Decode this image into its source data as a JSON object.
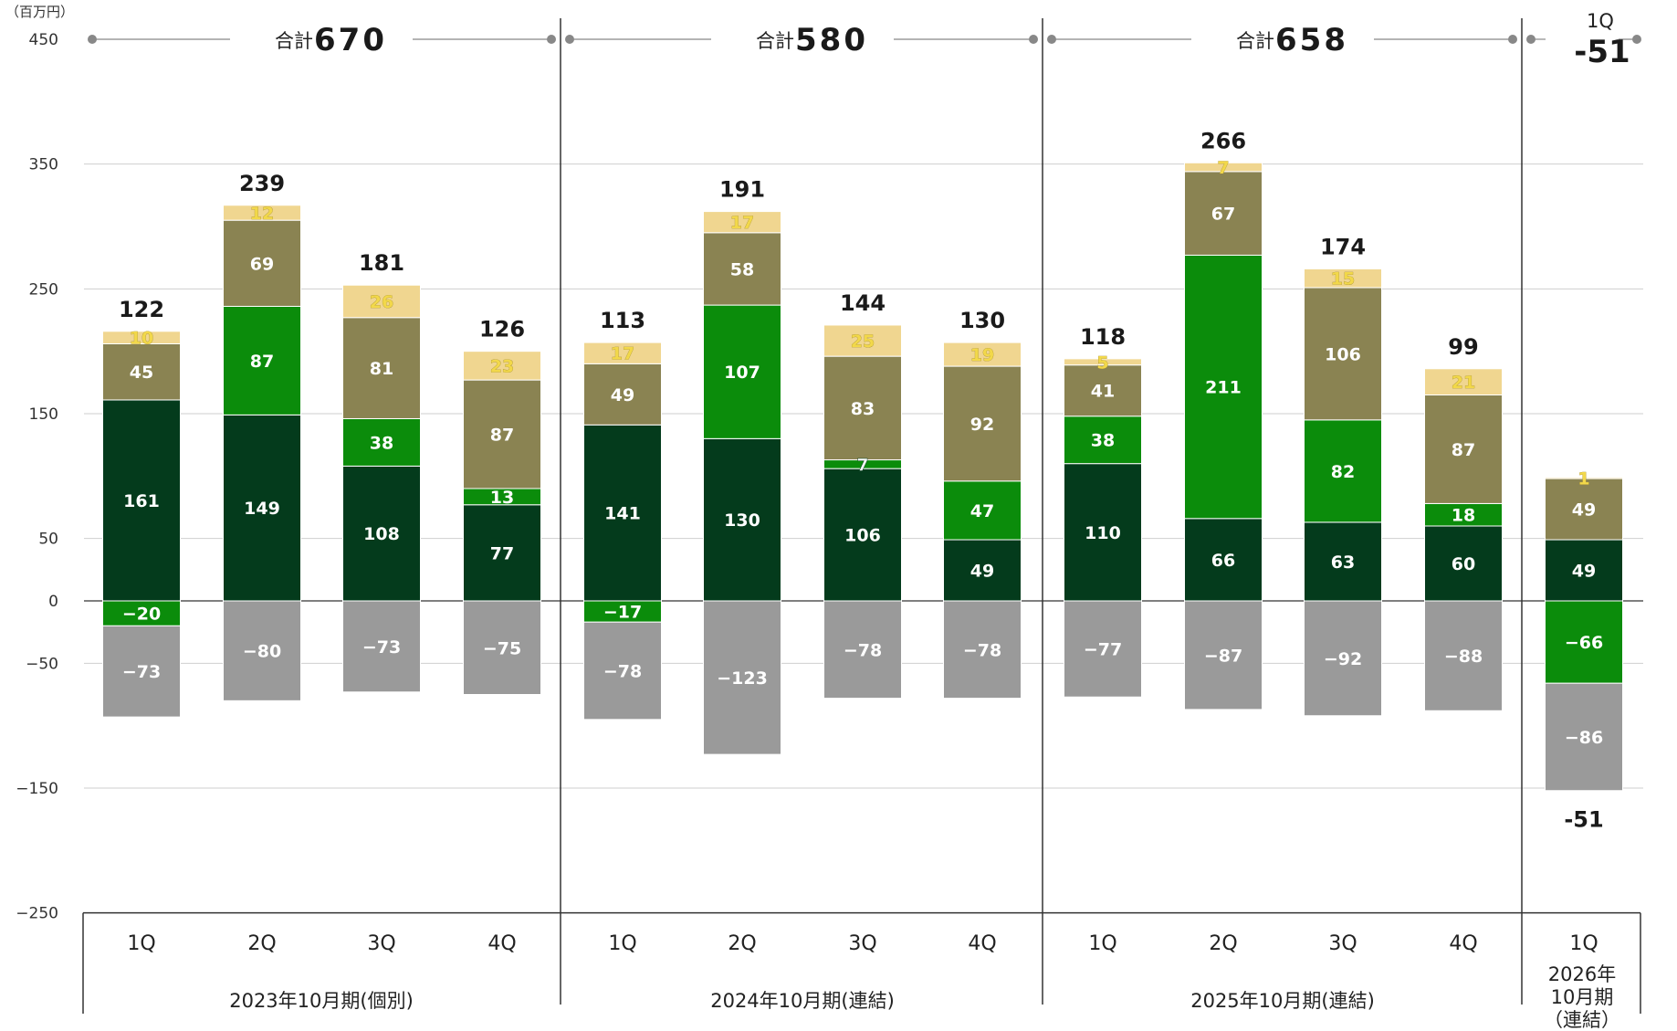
{
  "chart_data": {
    "type": "bar",
    "stacked": true,
    "unit_label": "（百万円）",
    "ylim": [
      -250,
      450
    ],
    "yticks": [
      450,
      350,
      250,
      150,
      50,
      0,
      -50,
      -150,
      -250
    ],
    "grid": true,
    "colors": {
      "dark_green": "#043b1c",
      "green": "#0b8c0b",
      "olive": "#8a8352",
      "tan": "#f0d690",
      "gray": "#9a9a9a",
      "tan_label": "#f2d84a"
    },
    "periods": [
      {
        "label": "2023年10月期(個別)",
        "sum_label": "合計",
        "sum_value": "670"
      },
      {
        "label": "2024年10月期(連結)",
        "sum_label": "合計",
        "sum_value": "580"
      },
      {
        "label": "2025年10月期(連結)",
        "sum_label": "合計",
        "sum_value": "658"
      },
      {
        "label_lines": [
          "2026年",
          "10月期",
          "（連結）"
        ],
        "sum_label": "1Q",
        "sum_value": "-51"
      }
    ],
    "bars": [
      {
        "quarter": "1Q",
        "period": 0,
        "total": "122",
        "dark_green": 161,
        "green": -20,
        "olive": 45,
        "tan": 10,
        "gray": -73
      },
      {
        "quarter": "2Q",
        "period": 0,
        "total": "239",
        "dark_green": 149,
        "green": 87,
        "olive": 69,
        "tan": 12,
        "gray": -80
      },
      {
        "quarter": "3Q",
        "period": 0,
        "total": "181",
        "dark_green": 108,
        "green": 38,
        "olive": 81,
        "tan": 26,
        "gray": -73
      },
      {
        "quarter": "4Q",
        "period": 0,
        "total": "126",
        "dark_green": 77,
        "green": 13,
        "olive": 87,
        "tan": 23,
        "gray": -75
      },
      {
        "quarter": "1Q",
        "period": 1,
        "total": "113",
        "dark_green": 141,
        "green": -17,
        "olive": 49,
        "tan": 17,
        "gray": -78
      },
      {
        "quarter": "2Q",
        "period": 1,
        "total": "191",
        "dark_green": 130,
        "green": 107,
        "olive": 58,
        "tan": 17,
        "gray": -123
      },
      {
        "quarter": "3Q",
        "period": 1,
        "total": "144",
        "dark_green": 106,
        "green": 7,
        "olive": 83,
        "tan": 25,
        "gray": -78
      },
      {
        "quarter": "4Q",
        "period": 1,
        "total": "130",
        "dark_green": 49,
        "green": 47,
        "olive": 92,
        "tan": 19,
        "gray": -78
      },
      {
        "quarter": "1Q",
        "period": 2,
        "total": "118",
        "dark_green": 110,
        "green": 38,
        "olive": 41,
        "tan": 5,
        "gray": -77
      },
      {
        "quarter": "2Q",
        "period": 2,
        "total": "266",
        "dark_green": 66,
        "green": 211,
        "olive": 67,
        "tan": 7,
        "gray": -87
      },
      {
        "quarter": "3Q",
        "period": 2,
        "total": "174",
        "dark_green": 63,
        "green": 82,
        "olive": 106,
        "tan": 15,
        "gray": -92
      },
      {
        "quarter": "4Q",
        "period": 2,
        "total": "99",
        "dark_green": 60,
        "green": 18,
        "olive": 87,
        "tan": 21,
        "gray": -88
      },
      {
        "quarter": "1Q",
        "period": 3,
        "total": "-51",
        "dark_green": 49,
        "green": -66,
        "olive": 49,
        "tan": 1,
        "gray": -86
      }
    ]
  }
}
